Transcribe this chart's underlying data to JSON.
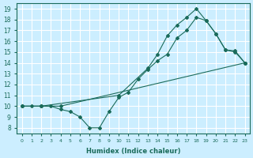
{
  "xlabel": "Humidex (Indice chaleur)",
  "bg_color": "#cceeff",
  "grid_color": "#ffffff",
  "line_color": "#1a6b5a",
  "xlim": [
    -0.5,
    23.5
  ],
  "ylim": [
    7.5,
    19.5
  ],
  "xticks": [
    0,
    1,
    2,
    3,
    4,
    5,
    6,
    7,
    8,
    9,
    10,
    11,
    12,
    13,
    14,
    15,
    16,
    17,
    18,
    19,
    20,
    21,
    22,
    23
  ],
  "yticks": [
    8,
    9,
    10,
    11,
    12,
    13,
    14,
    15,
    16,
    17,
    18,
    19
  ],
  "line1_x": [
    0,
    2,
    4,
    23
  ],
  "line1_y": [
    10,
    10,
    10,
    14
  ],
  "line2_x": [
    0,
    1,
    2,
    3,
    4,
    5,
    6,
    7,
    8,
    9,
    10,
    11,
    12,
    13,
    14,
    15,
    16,
    17,
    18,
    19,
    20,
    21,
    22,
    23
  ],
  "line2_y": [
    10,
    10,
    10,
    10,
    9.7,
    9.5,
    9.0,
    8.0,
    8.0,
    9.5,
    10.8,
    11.3,
    12.5,
    13.4,
    14.2,
    14.8,
    16.3,
    17.0,
    18.2,
    17.9,
    16.7,
    15.2,
    15.1,
    14.0
  ],
  "line3_x": [
    0,
    2,
    10,
    13,
    14,
    15,
    16,
    17,
    18,
    19,
    20,
    21,
    22,
    23
  ],
  "line3_y": [
    10,
    10,
    11,
    13.5,
    14.8,
    16.5,
    17.5,
    18.2,
    19.0,
    17.9,
    16.7,
    15.2,
    15.0,
    14.0
  ]
}
